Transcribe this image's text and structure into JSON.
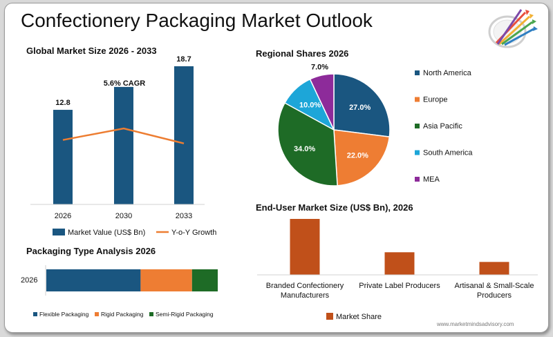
{
  "page": {
    "title": "Confectionery Packaging Market Outlook",
    "source": "www.marketmindsadvisory.com"
  },
  "colors": {
    "navy": "#1a5680",
    "orange": "#ee7d33",
    "green": "#1e6b26",
    "cyan": "#1da6d8",
    "purple": "#8d2b9a",
    "rust": "#c0501a",
    "line": "#ed7d31"
  },
  "chart_data": [
    {
      "id": "market-size",
      "type": "bar",
      "title": "Global Market Size 2026 - 2033",
      "categories": [
        "2026",
        "2030",
        "2033"
      ],
      "series": [
        {
          "name": "Market Value (US$ Bn)",
          "values": [
            12.8,
            15.9,
            18.7
          ],
          "labels": [
            "12.8",
            "",
            "18.7"
          ]
        },
        {
          "name": "Y-o-Y Growth",
          "type": "line",
          "values": [
            5.6,
            6.6,
            5.3
          ]
        }
      ],
      "annotation": "5.6% CAGR",
      "ylim": [
        0,
        20
      ]
    },
    {
      "id": "regional-shares",
      "type": "pie",
      "title": "Regional Shares 2026",
      "labels": [
        "North America",
        "Europe",
        "Asia Pacific",
        "South America",
        "MEA"
      ],
      "values": [
        27.0,
        22.0,
        34.0,
        10.0,
        7.0
      ],
      "value_labels": [
        "27.0%",
        "22.0%",
        "34.0%",
        "10.0%",
        "7.0%"
      ],
      "legend": "right"
    },
    {
      "id": "packaging-type",
      "type": "bar",
      "orientation": "horizontal-stacked",
      "title": "Packaging Type Analysis 2026",
      "categories": [
        "2026"
      ],
      "series": [
        {
          "name": "Flexible Packaging",
          "values": [
            55
          ]
        },
        {
          "name": "Rigid Packaging",
          "values": [
            30
          ]
        },
        {
          "name": "Semi-Rigid Packaging",
          "values": [
            15
          ]
        }
      ],
      "legend": "bottom"
    },
    {
      "id": "end-user",
      "type": "bar",
      "title": "End-User Market Size (US$ Bn), 2026",
      "categories": [
        "Branded Confectionery Manufacturers",
        "Private Label Producers",
        "Artisanal & Small-Scale Producers"
      ],
      "category_lines": [
        [
          "Branded Confectionery",
          "Manufacturers"
        ],
        [
          "Private Label Producers"
        ],
        [
          "Artisanal & Small-Scale",
          "Producers"
        ]
      ],
      "series": [
        {
          "name": "Market Share",
          "values": [
            5.2,
            2.1,
            1.2
          ]
        }
      ],
      "legend": "bottom"
    }
  ]
}
